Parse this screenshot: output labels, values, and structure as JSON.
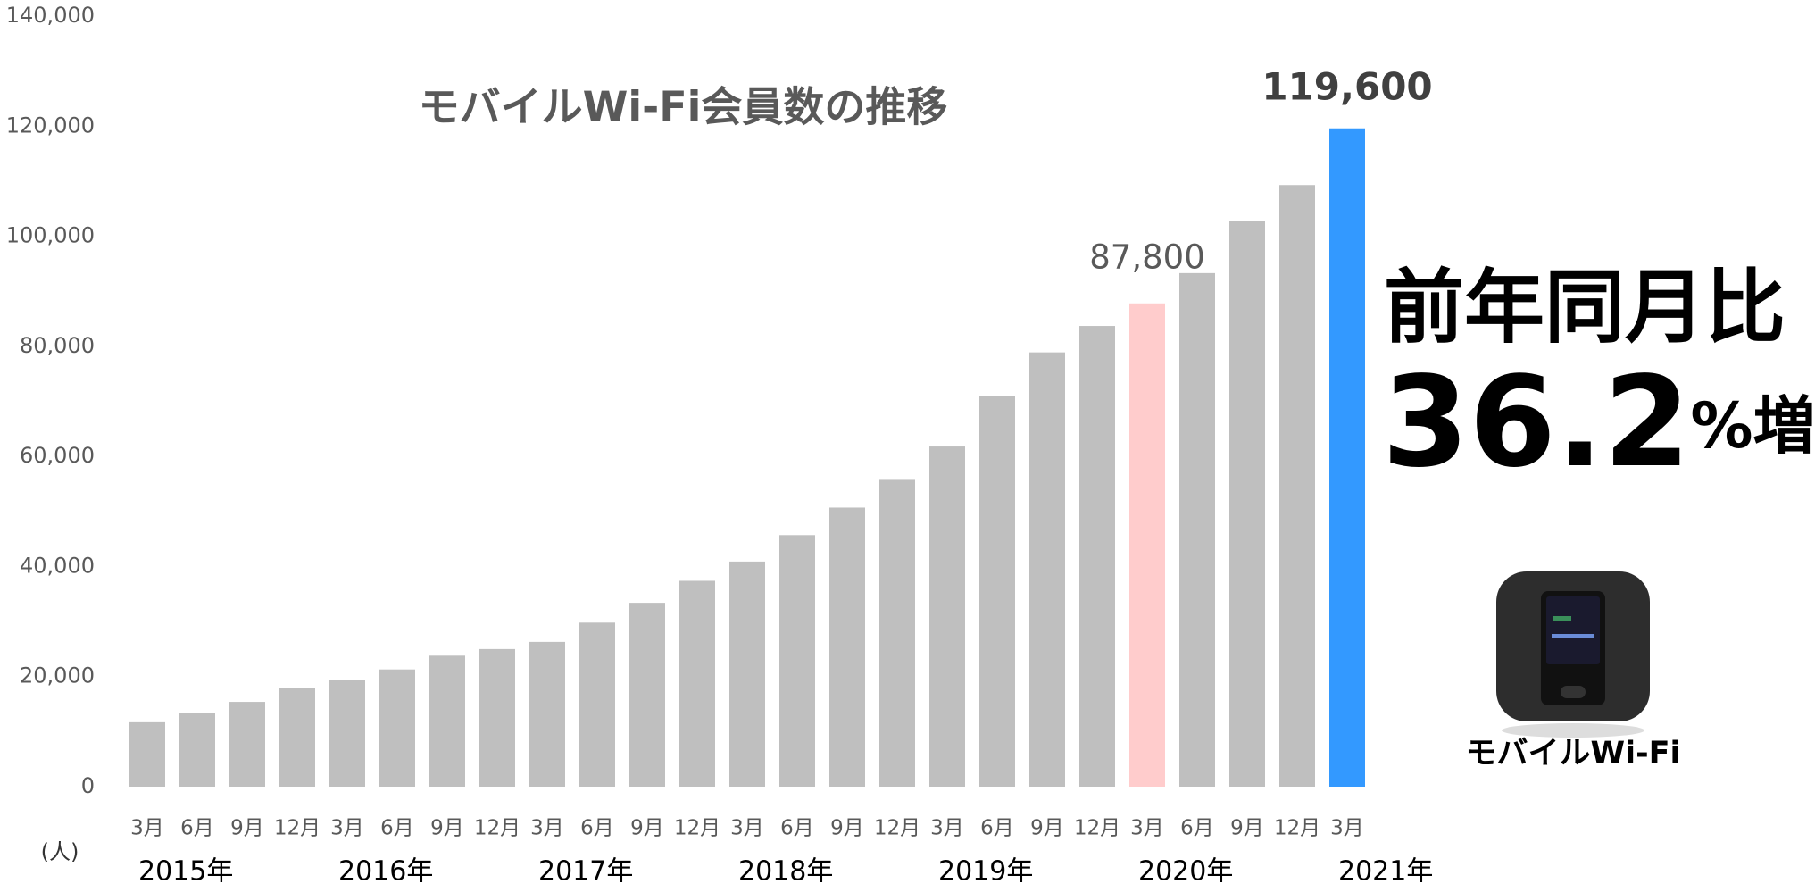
{
  "chart_data": {
    "type": "bar",
    "title": "モバイルWi-Fi会員数の推移",
    "y_unit_label": "(人)",
    "categories": [
      "3月",
      "6月",
      "9月",
      "12月",
      "3月",
      "6月",
      "9月",
      "12月",
      "3月",
      "6月",
      "9月",
      "12月",
      "3月",
      "6月",
      "9月",
      "12月",
      "3月",
      "6月",
      "9月",
      "12月",
      "3月",
      "6月",
      "9月",
      "12月",
      "3月"
    ],
    "year_labels": [
      "2015年",
      "2016年",
      "2017年",
      "2018年",
      "2019年",
      "2020年",
      "2021年"
    ],
    "values": [
      11700,
      13400,
      15400,
      17900,
      19400,
      21300,
      23800,
      25000,
      26300,
      29800,
      33400,
      37400,
      40900,
      45700,
      50700,
      55900,
      61800,
      70900,
      78900,
      83700,
      87800,
      93300,
      102700,
      109300,
      119600
    ],
    "value_labels": [
      null,
      null,
      null,
      null,
      null,
      null,
      null,
      null,
      null,
      null,
      null,
      null,
      null,
      null,
      null,
      null,
      null,
      null,
      null,
      null,
      "87,800",
      null,
      null,
      null,
      "119,600"
    ],
    "colors": [
      "#bfbfbf",
      "#bfbfbf",
      "#bfbfbf",
      "#bfbfbf",
      "#bfbfbf",
      "#bfbfbf",
      "#bfbfbf",
      "#bfbfbf",
      "#bfbfbf",
      "#bfbfbf",
      "#bfbfbf",
      "#bfbfbf",
      "#bfbfbf",
      "#bfbfbf",
      "#bfbfbf",
      "#bfbfbf",
      "#bfbfbf",
      "#bfbfbf",
      "#bfbfbf",
      "#bfbfbf",
      "#ffcccc",
      "#bfbfbf",
      "#bfbfbf",
      "#bfbfbf",
      "#3399ff"
    ],
    "ylim": [
      0,
      140000
    ],
    "yticks": [
      {
        "value": 0,
        "label": "0"
      },
      {
        "value": 20000,
        "label": "20,000"
      },
      {
        "value": 40000,
        "label": "40,000"
      },
      {
        "value": 60000,
        "label": "60,000"
      },
      {
        "value": 80000,
        "label": "80,000"
      },
      {
        "value": 100000,
        "label": "100,000"
      },
      {
        "value": 120000,
        "label": "120,000"
      },
      {
        "value": 140000,
        "label": "140,000"
      }
    ],
    "grid": false,
    "annotation": {
      "line1": "前年同月比",
      "number": "36.2",
      "suffix": "%増"
    },
    "product_label": "モバイルWi-Fi"
  }
}
